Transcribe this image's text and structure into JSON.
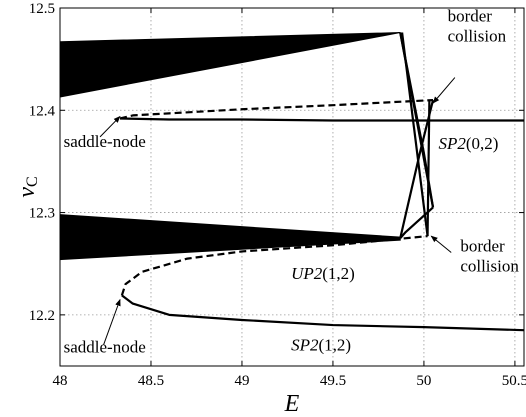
{
  "chart_data": {
    "type": "line",
    "title": "",
    "xlabel": "E",
    "ylabel": "v_C",
    "ylabel_main": "v",
    "ylabel_sub": "C",
    "xlim": [
      48,
      50.55
    ],
    "ylim": [
      12.15,
      12.5
    ],
    "grid": true,
    "x_ticks": [
      48,
      48.5,
      49,
      49.5,
      50,
      50.5
    ],
    "x_tick_labels": [
      "48",
      "48.5",
      "49",
      "49.5",
      "50",
      "50.5"
    ],
    "y_ticks": [
      12.2,
      12.3,
      12.4,
      12.5
    ],
    "y_tick_labels": [
      "12.2",
      "12.3",
      "12.4",
      "12.5"
    ],
    "series": [
      {
        "style": "solid",
        "x": [
          48.33,
          48.6,
          49.0,
          49.5,
          50.0,
          50.55
        ],
        "y": [
          12.392,
          12.391,
          12.391,
          12.39,
          12.39,
          12.39
        ]
      },
      {
        "style": "dashed",
        "x": [
          48.33,
          48.4,
          48.6,
          49.0,
          49.5,
          50.05
        ],
        "y": [
          12.392,
          12.395,
          12.397,
          12.401,
          12.405,
          12.41
        ]
      },
      {
        "style": "solid",
        "x": [
          48.34,
          48.4,
          48.6,
          49.0,
          49.5,
          50.0,
          50.55
        ],
        "y": [
          12.219,
          12.211,
          12.2,
          12.195,
          12.19,
          12.188,
          12.185
        ]
      },
      {
        "style": "dashed",
        "x": [
          48.34,
          48.36,
          48.45,
          48.7,
          49.0,
          49.5,
          50.02
        ],
        "y": [
          12.219,
          12.23,
          12.242,
          12.255,
          12.262,
          12.268,
          12.277
        ]
      },
      {
        "style": "solid",
        "x": [
          49.87,
          50.05
        ],
        "y": [
          12.476,
          12.305
        ]
      },
      {
        "style": "solid",
        "x": [
          50.05,
          49.9,
          49.87
        ],
        "y": [
          12.305,
          12.281,
          12.275
        ]
      },
      {
        "style": "solid",
        "x": [
          50.05,
          50.0,
          49.87
        ],
        "y": [
          12.305,
          12.358,
          12.476
        ]
      },
      {
        "style": "solid",
        "x": [
          49.87,
          49.98,
          50.05
        ],
        "y": [
          12.275,
          12.36,
          12.41
        ]
      },
      {
        "style": "solid",
        "x": [
          50.02,
          49.88
        ],
        "y": [
          12.277,
          12.476
        ]
      },
      {
        "style": "solid",
        "x": [
          50.02,
          50.03
        ],
        "y": [
          12.277,
          12.41
        ]
      }
    ],
    "bands": [
      {
        "x_start": 48,
        "x_end": 49.87,
        "y_top_start": 12.467,
        "y_top_end": 12.476,
        "y_bottom_start": 12.413,
        "y_bottom_end": 12.476
      },
      {
        "x_start": 48,
        "x_end": 49.87,
        "y_top_start": 12.298,
        "y_top_end": 12.276,
        "y_bottom_start": 12.254,
        "y_bottom_end": 12.273
      }
    ],
    "annotations": [
      {
        "id": "border-top",
        "lines": [
          "border",
          "collision"
        ],
        "text_x": 50.13,
        "text_y": 12.487,
        "arrow_from": [
          50.17,
          12.432
        ],
        "arrow_to": [
          50.05,
          12.407
        ]
      },
      {
        "id": "saddle-top",
        "lines": [
          "saddle-node"
        ],
        "text_x": 48.02,
        "text_y": 12.364,
        "arrow_from": [
          48.22,
          12.374
        ],
        "arrow_to": [
          48.33,
          12.394
        ]
      },
      {
        "id": "sp2-02",
        "lines": [
          "SP2(0,2)"
        ],
        "italic_prefix": "SP2",
        "text_x": 50.08,
        "text_y": 12.362
      },
      {
        "id": "up2-12",
        "lines": [
          "UP2(1,2)"
        ],
        "italic_prefix": "UP2",
        "text_x": 49.27,
        "text_y": 12.235
      },
      {
        "id": "border-bottom",
        "lines": [
          "border",
          "collision"
        ],
        "text_x": 50.2,
        "text_y": 12.262,
        "arrow_from": [
          50.15,
          12.261
        ],
        "arrow_to": [
          50.04,
          12.277
        ]
      },
      {
        "id": "saddle-bottom",
        "lines": [
          "saddle-node"
        ],
        "text_x": 48.02,
        "text_y": 12.163,
        "arrow_from": [
          48.24,
          12.171
        ],
        "arrow_to": [
          48.33,
          12.215
        ]
      },
      {
        "id": "sp2-12",
        "lines": [
          "SP2(1,2)"
        ],
        "italic_prefix": "SP2",
        "text_x": 49.27,
        "text_y": 12.165
      }
    ]
  }
}
